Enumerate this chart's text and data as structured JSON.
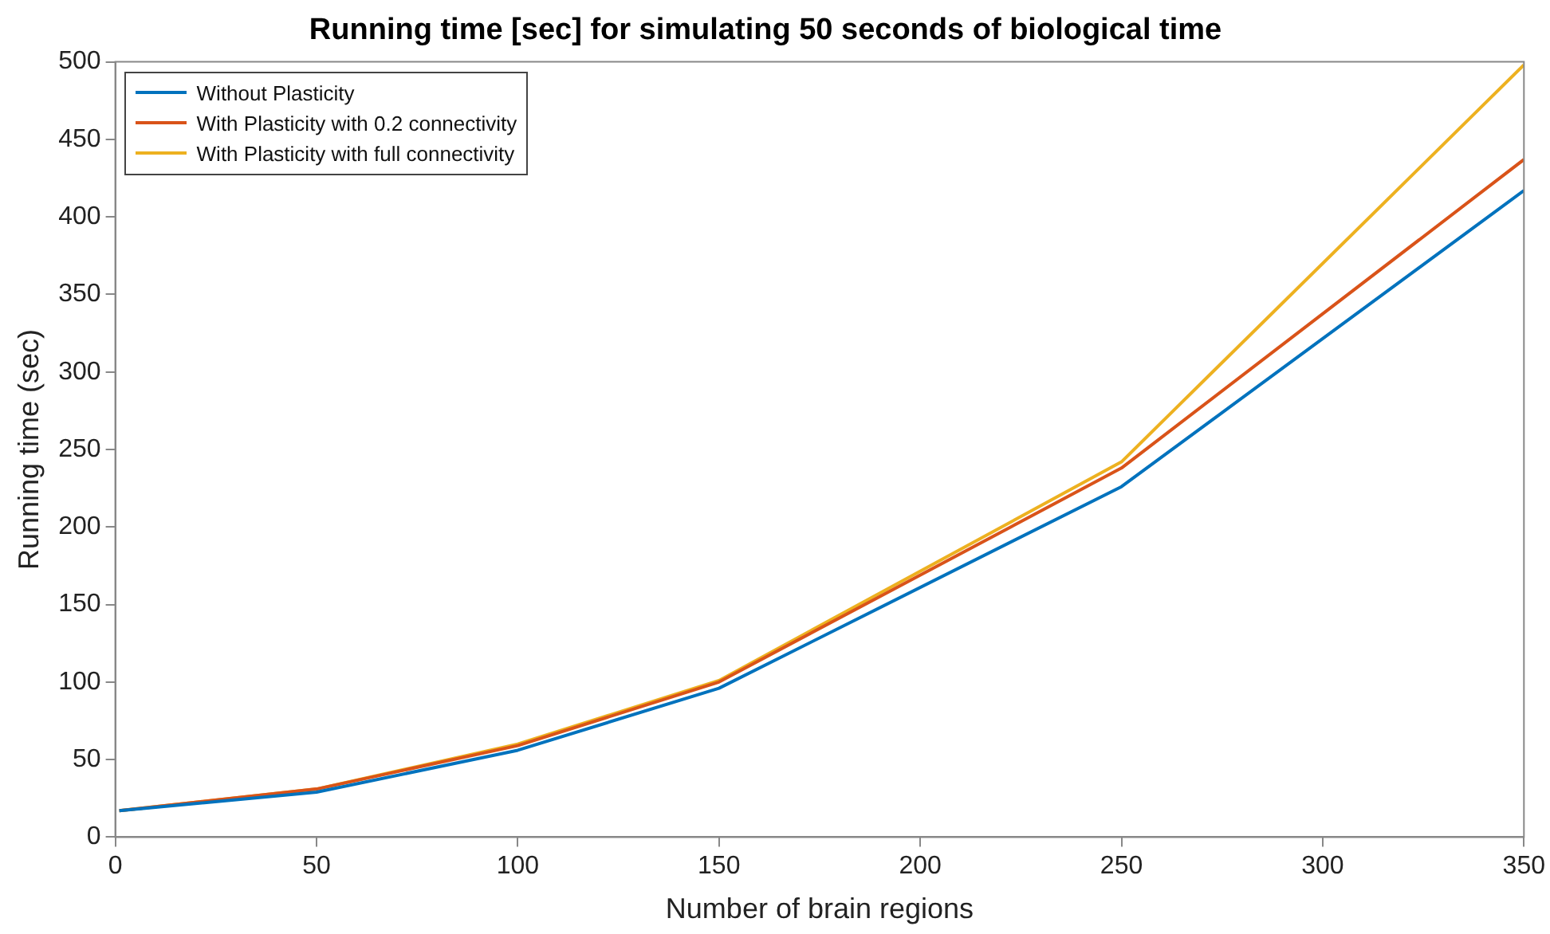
{
  "chart_data": {
    "type": "line",
    "title": "Running time [sec] for simulating 50 seconds of biological time",
    "xlabel": "Number of brain regions",
    "ylabel": "Running time (sec)",
    "x": [
      1,
      50,
      100,
      150,
      250,
      350
    ],
    "series": [
      {
        "name": "Without Plasticity",
        "color": "#0072bd",
        "values": [
          17,
          29,
          56,
          96,
          226,
          417
        ]
      },
      {
        "name": "With Plasticity with 0.2 connectivity",
        "color": "#d95319",
        "values": [
          17,
          31,
          59,
          100,
          238,
          437
        ]
      },
      {
        "name": "With Plasticity with full connectivity",
        "color": "#edb120",
        "values": [
          17,
          31,
          60,
          101,
          242,
          498
        ]
      }
    ],
    "xlim": [
      0,
      350
    ],
    "xticks": [
      0,
      50,
      100,
      150,
      200,
      250,
      300,
      350
    ],
    "ylim": [
      0,
      500
    ],
    "yticks": [
      0,
      50,
      100,
      150,
      200,
      250,
      300,
      350,
      400,
      450,
      500
    ],
    "grid": false,
    "legend": "top left",
    "marker": "none",
    "line_style": "solid"
  }
}
